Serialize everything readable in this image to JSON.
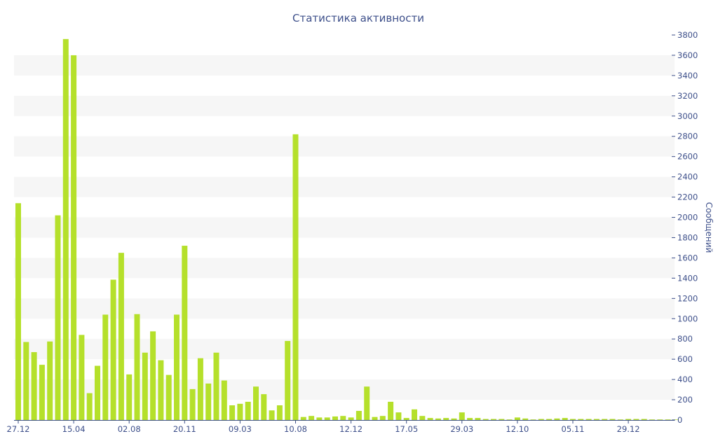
{
  "chart_data": {
    "type": "bar",
    "title": "Статистика активности",
    "xlabel": "",
    "ylabel": "Сообщений",
    "y_axis_side": "right",
    "ylim": [
      0,
      3800
    ],
    "y_ticks": [
      0,
      200,
      400,
      600,
      800,
      1000,
      1200,
      1400,
      1600,
      1800,
      2000,
      2200,
      2400,
      2600,
      2800,
      3000,
      3200,
      3400,
      3600,
      3800
    ],
    "x_tick_labels": [
      {
        "label": "27.12",
        "index": 0
      },
      {
        "label": "15.04",
        "index": 7
      },
      {
        "label": "02.08",
        "index": 14
      },
      {
        "label": "20.11",
        "index": 21
      },
      {
        "label": "09.03",
        "index": 28
      },
      {
        "label": "10.08",
        "index": 35
      },
      {
        "label": "12.12",
        "index": 42
      },
      {
        "label": "17.05",
        "index": 49
      },
      {
        "label": "29.03",
        "index": 56
      },
      {
        "label": "12.10",
        "index": 63
      },
      {
        "label": "05.11",
        "index": 70
      },
      {
        "label": "29.12",
        "index": 77
      }
    ],
    "grid": "alternating horizontal bands",
    "bar_color": "#b5e02b",
    "band_color": "#f6f6f6",
    "text_color": "#3d4f8a",
    "values": [
      2140,
      770,
      670,
      545,
      775,
      2020,
      3760,
      3600,
      840,
      265,
      535,
      1040,
      1385,
      1650,
      450,
      1045,
      665,
      875,
      590,
      445,
      1040,
      1720,
      305,
      610,
      360,
      665,
      390,
      145,
      160,
      180,
      330,
      255,
      95,
      145,
      780,
      2820,
      30,
      40,
      25,
      25,
      35,
      40,
      25,
      90,
      330,
      30,
      40,
      180,
      75,
      20,
      105,
      40,
      20,
      15,
      20,
      15,
      75,
      20,
      20,
      10,
      10,
      10,
      5,
      25,
      15,
      5,
      10,
      10,
      15,
      20,
      10,
      10,
      10,
      10,
      10,
      10,
      5,
      10,
      10,
      10,
      5,
      5,
      5,
      5
    ]
  }
}
